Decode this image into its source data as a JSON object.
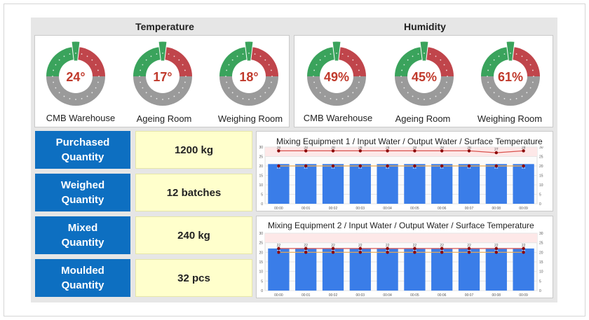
{
  "sections": {
    "temperature_title": "Temperature",
    "humidity_title": "Humidity"
  },
  "temperature_gauges": [
    {
      "label": "CMB Warehouse",
      "value_text": "24°",
      "value": 24
    },
    {
      "label": "Ageing Room",
      "value_text": "17°",
      "value": 17
    },
    {
      "label": "Weighing Room",
      "value_text": "18°",
      "value": 18
    }
  ],
  "humidity_gauges": [
    {
      "label": "CMB Warehouse",
      "value_text": "49%",
      "value": 49
    },
    {
      "label": "Ageing Room",
      "value_text": "45%",
      "value": 45
    },
    {
      "label": "Weighing Room",
      "value_text": "61%",
      "value": 61
    }
  ],
  "metrics": [
    {
      "label_line1": "Purchased",
      "label_line2": "Quantity",
      "value": "1200 kg"
    },
    {
      "label_line1": "Weighed",
      "label_line2": "Quantity",
      "value": "12 batches"
    },
    {
      "label_line1": "Mixed",
      "label_line2": "Quantity",
      "value": "240 kg"
    },
    {
      "label_line1": "Moulded",
      "label_line2": "Quantity",
      "value": "32 pcs"
    }
  ],
  "colors": {
    "metric_label_bg": "#0d6fc1",
    "metric_value_bg": "#ffffcc",
    "gauge_green": "#3aa35c",
    "gauge_red": "#c0454b",
    "gauge_grey": "#9a9a9a",
    "bar_blue": "#3a7de8",
    "line_red": "#d9534f",
    "line_orange": "#f0ad4e"
  },
  "chart_data": [
    {
      "type": "bar",
      "title": "Mixing Equipment 1  / Input Water  / Output Water  / Surface Temperature",
      "categories": [
        "00:00",
        "00:01",
        "00:02",
        "00:03",
        "00:04",
        "00:05",
        "00:06",
        "00:07",
        "00:08",
        "00:09"
      ],
      "series": [
        {
          "values": [
            21,
            21,
            21,
            21,
            21,
            21,
            21,
            21,
            21,
            21
          ]
        },
        {
          "values": [
            28,
            28,
            28,
            28,
            28,
            28,
            28,
            28,
            27,
            28
          ]
        },
        {
          "values": [
            20,
            20,
            20,
            20,
            20,
            20,
            20,
            20,
            20,
            20
          ]
        }
      ],
      "bar_labels": [
        "21",
        "21",
        "21",
        "21",
        "21",
        "21",
        "21",
        "21",
        "21",
        "21"
      ],
      "top_labels": [
        "28",
        "28",
        "28",
        "28",
        "28",
        "28",
        "28",
        "28",
        "27",
        "28"
      ],
      "ylim": [
        0,
        30
      ],
      "left_ticks": [
        "0",
        "5",
        "10",
        "15",
        "20",
        "25",
        "30"
      ],
      "right_ticks": [
        "0",
        "5",
        "10",
        "15",
        "20",
        "25",
        "30"
      ]
    },
    {
      "type": "bar",
      "title": "Mixing Equipment 2  / Input Water  / Output Water  / Surface Temperature",
      "categories": [
        "00:00",
        "00:01",
        "00:02",
        "00:03",
        "00:04",
        "00:05",
        "00:06",
        "00:07",
        "00:08",
        "00:09"
      ],
      "series": [
        {
          "values": [
            22,
            22,
            22,
            22,
            22,
            22,
            22,
            22,
            22,
            22
          ]
        },
        {
          "values": [
            22,
            22,
            22,
            22,
            22,
            22,
            22,
            22,
            22,
            22
          ]
        },
        {
          "values": [
            20,
            20,
            20,
            20,
            20,
            20,
            20,
            20,
            20,
            20
          ]
        }
      ],
      "bar_labels": [
        "22",
        "22",
        "22",
        "22",
        "22",
        "22",
        "22",
        "22",
        "22",
        "22"
      ],
      "top_labels": [
        "22",
        "22",
        "22",
        "22",
        "22",
        "22",
        "22",
        "22",
        "22",
        "22"
      ],
      "ylim": [
        0,
        30
      ],
      "left_ticks": [
        "0",
        "5",
        "10",
        "15",
        "20",
        "25",
        "30"
      ],
      "right_ticks": [
        "0",
        "5",
        "10",
        "15",
        "20",
        "25",
        "30"
      ]
    }
  ]
}
